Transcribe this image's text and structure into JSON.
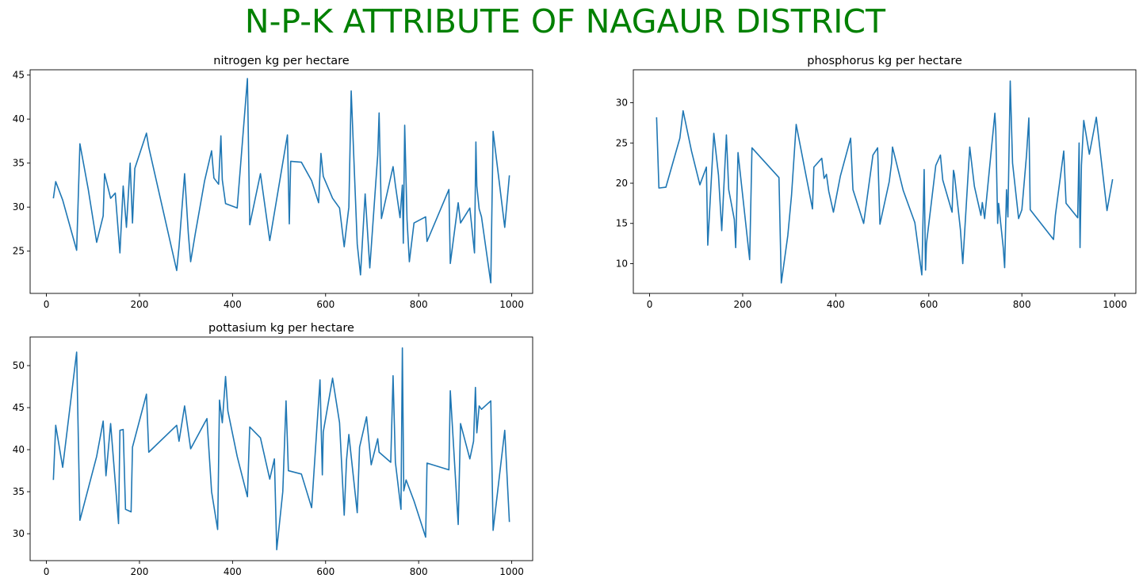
{
  "figure": {
    "title": "N-P-K ATTRIBUTE OF NAGAUR DISTRICT",
    "title_color": "#008000",
    "line_color": "#1f77b4"
  },
  "chart_data": [
    {
      "type": "line",
      "title": "nitrogen kg per hectare",
      "xlabel": "",
      "ylabel": "",
      "xlim": [
        -35,
        1045
      ],
      "ylim": [
        20.2,
        45.6
      ],
      "xticks": [
        0,
        200,
        400,
        600,
        800,
        1000
      ],
      "yticks": [
        25,
        30,
        35,
        40,
        45
      ],
      "grid": false,
      "legend": "none",
      "series": [
        {
          "x": [
            15,
            20,
            35,
            65,
            72,
            90,
            108,
            122,
            125,
            138,
            148,
            158,
            165,
            172,
            180,
            185,
            190,
            215,
            220,
            280,
            285,
            297,
            305,
            310,
            320,
            340,
            355,
            360,
            370,
            375,
            378,
            385,
            410,
            432,
            437,
            460,
            480,
            518,
            522,
            525,
            548,
            570,
            585,
            590,
            595,
            615,
            630,
            640,
            645,
            650,
            655,
            668,
            675,
            685,
            695,
            712,
            715,
            720,
            745,
            750,
            760,
            765,
            767,
            770,
            775,
            780,
            790,
            815,
            818,
            865,
            868,
            885,
            890,
            910,
            920,
            923,
            925,
            930,
            935,
            955,
            960,
            985,
            995
          ],
          "y": [
            31,
            32.9,
            30.8,
            25.1,
            37.2,
            32,
            26,
            29,
            33.8,
            31,
            31.6,
            24.8,
            32.4,
            27.7,
            35,
            28.2,
            34.4,
            38.4,
            36.8,
            22.8,
            25.5,
            33.8,
            27,
            23.8,
            27,
            33,
            36.4,
            33.3,
            32.6,
            38.1,
            33.1,
            30.4,
            29.9,
            44.6,
            28,
            33.8,
            26.2,
            38.2,
            28.1,
            35.2,
            35.1,
            33,
            30.5,
            36.1,
            33.5,
            31,
            29.9,
            25.5,
            27.8,
            30,
            43.2,
            25.8,
            22.3,
            31.5,
            23.1,
            35.9,
            40.7,
            28.7,
            34.6,
            32.5,
            28.8,
            32.5,
            25.9,
            39.3,
            28.6,
            23.8,
            28.2,
            28.9,
            26.1,
            32,
            23.6,
            30.5,
            28.2,
            29.9,
            24.8,
            37.4,
            32.4,
            29.8,
            28.9,
            21.4,
            38.6,
            27.7,
            33.6
          ]
        }
      ]
    },
    {
      "type": "line",
      "title": "phosphorus kg per hectare",
      "xlabel": "",
      "ylabel": "",
      "xlim": [
        -35,
        1045
      ],
      "ylim": [
        6.3,
        34.1
      ],
      "xticks": [
        0,
        200,
        400,
        600,
        800,
        1000
      ],
      "yticks": [
        10,
        15,
        20,
        25,
        30
      ],
      "grid": false,
      "legend": "none",
      "series": [
        {
          "x": [
            15,
            20,
            35,
            65,
            72,
            90,
            108,
            122,
            125,
            138,
            148,
            155,
            165,
            170,
            182,
            185,
            190,
            215,
            220,
            278,
            283,
            297,
            305,
            315,
            350,
            353,
            370,
            375,
            380,
            385,
            395,
            410,
            432,
            437,
            460,
            480,
            490,
            495,
            515,
            520,
            522,
            545,
            570,
            585,
            590,
            593,
            595,
            615,
            625,
            630,
            650,
            653,
            655,
            668,
            673,
            688,
            698,
            712,
            715,
            720,
            742,
            744,
            748,
            750,
            760,
            763,
            767,
            770,
            775,
            780,
            793,
            800,
            810,
            815,
            818,
            868,
            872,
            890,
            895,
            920,
            923,
            925,
            928,
            933,
            945,
            960,
            983,
            995
          ],
          "y": [
            28.2,
            19.4,
            19.5,
            25.6,
            29,
            24,
            19.8,
            22,
            12.3,
            26.2,
            21,
            14.1,
            26,
            19.2,
            15.5,
            12,
            23.8,
            10.5,
            24.4,
            20.7,
            7.6,
            13.5,
            18.5,
            27.3,
            16.8,
            22,
            23.1,
            20.6,
            21.1,
            19,
            16.4,
            20.9,
            25.6,
            19.2,
            15,
            23.5,
            24.4,
            14.9,
            20.2,
            22.5,
            24.5,
            19.1,
            15.1,
            8.6,
            21.7,
            9.2,
            12.5,
            22.2,
            23.5,
            20.4,
            16.4,
            21.6,
            21.1,
            14.2,
            10,
            24.5,
            19.6,
            16,
            17.6,
            15.6,
            28.7,
            26.5,
            15,
            17.5,
            12,
            9.5,
            19.2,
            15.8,
            32.7,
            22.5,
            15.6,
            16.7,
            23.5,
            28.1,
            16.7,
            13,
            16,
            24,
            17.5,
            15.7,
            25,
            12,
            22.2,
            27.8,
            23.6,
            28.2,
            16.6,
            20.5
          ]
        }
      ]
    },
    {
      "type": "line",
      "title": "pottasium kg per hectare",
      "xlabel": "",
      "ylabel": "",
      "xlim": [
        -35,
        1045
      ],
      "ylim": [
        26.8,
        53.4
      ],
      "xticks": [
        0,
        200,
        400,
        600,
        800,
        1000
      ],
      "yticks": [
        30,
        35,
        40,
        45,
        50
      ],
      "grid": false,
      "legend": "none",
      "series": [
        {
          "x": [
            15,
            20,
            35,
            65,
            72,
            108,
            122,
            128,
            138,
            155,
            158,
            165,
            170,
            182,
            185,
            215,
            220,
            280,
            285,
            297,
            310,
            345,
            355,
            368,
            372,
            378,
            385,
            390,
            410,
            432,
            437,
            460,
            480,
            490,
            495,
            508,
            515,
            520,
            548,
            570,
            588,
            593,
            595,
            615,
            630,
            640,
            645,
            650,
            668,
            673,
            688,
            698,
            712,
            715,
            740,
            745,
            750,
            762,
            765,
            768,
            773,
            790,
            815,
            818,
            865,
            868,
            885,
            890,
            910,
            918,
            922,
            925,
            930,
            935,
            955,
            960,
            985,
            995
          ],
          "y": [
            36.4,
            42.9,
            37.9,
            51.6,
            31.6,
            39.2,
            43.4,
            36.9,
            43.1,
            31.2,
            42.3,
            42.4,
            32.9,
            32.6,
            40.3,
            46.6,
            39.7,
            42.9,
            41,
            45.2,
            40.1,
            43.7,
            35,
            30.5,
            45.9,
            43.2,
            48.7,
            44.6,
            39.2,
            34.4,
            42.7,
            41.4,
            36.5,
            38.9,
            28.1,
            35,
            45.8,
            37.5,
            37.1,
            33.1,
            48.3,
            37,
            42.1,
            48.5,
            43.2,
            32.2,
            38.8,
            41.8,
            32.5,
            40.3,
            43.9,
            38.2,
            41.3,
            39.7,
            38.5,
            48.8,
            38.5,
            32.9,
            52.1,
            35.1,
            36.4,
            33.9,
            29.6,
            38.4,
            37.6,
            47,
            31.1,
            43.1,
            38.9,
            41,
            47.4,
            42,
            45.2,
            44.8,
            45.8,
            30.4,
            42.3,
            31.4
          ]
        }
      ]
    }
  ]
}
